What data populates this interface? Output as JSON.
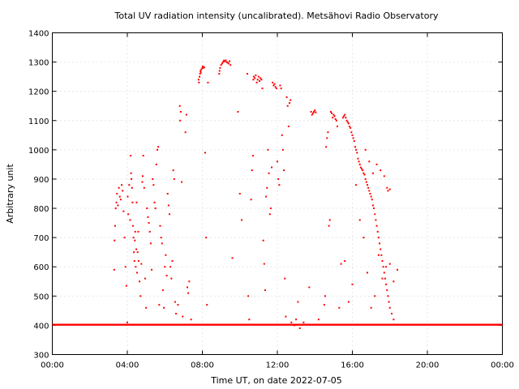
{
  "chart_data": {
    "type": "scatter",
    "title": "Total UV radiation intensity (uncalibrated). Metsähovi Radio Observatory",
    "xlabel": "Time UT, on date 2022-07-05",
    "ylabel": "Arbitrary unit",
    "xlim": [
      0,
      24
    ],
    "ylim": [
      300,
      1400
    ],
    "x_ticks": [
      0,
      4,
      8,
      12,
      16,
      20,
      24
    ],
    "x_tick_labels": [
      "00:00",
      "04:00",
      "08:00",
      "12:00",
      "16:00",
      "20:00",
      "00:00"
    ],
    "y_ticks": [
      300,
      400,
      500,
      600,
      700,
      800,
      900,
      1000,
      1100,
      1200,
      1300,
      1400
    ],
    "y_tick_labels": [
      "300",
      "400",
      "500",
      "600",
      "700",
      "800",
      "900",
      "1000",
      "1100",
      "1200",
      "1300",
      "1400"
    ],
    "grid": true,
    "marker_color": "#ff0000",
    "baseline": 402,
    "series": [
      {
        "points": [
          [
            3.3,
            590
          ],
          [
            3.32,
            690
          ],
          [
            3.35,
            740
          ],
          [
            3.38,
            800
          ],
          [
            3.42,
            820
          ],
          [
            3.45,
            850
          ],
          [
            3.5,
            810
          ],
          [
            3.55,
            870
          ],
          [
            3.6,
            840
          ],
          [
            3.65,
            830
          ],
          [
            3.7,
            880
          ],
          [
            3.75,
            860
          ],
          [
            3.8,
            790
          ],
          [
            3.85,
            700
          ],
          [
            3.9,
            600
          ],
          [
            3.95,
            535
          ],
          [
            4.0,
            410
          ],
          [
            4.02,
            840
          ],
          [
            4.05,
            780
          ],
          [
            4.1,
            880
          ],
          [
            4.15,
            760
          ],
          [
            4.18,
            980
          ],
          [
            4.2,
            920
          ],
          [
            4.22,
            900
          ],
          [
            4.25,
            870
          ],
          [
            4.28,
            820
          ],
          [
            4.3,
            740
          ],
          [
            4.33,
            700
          ],
          [
            4.35,
            650
          ],
          [
            4.38,
            620
          ],
          [
            4.4,
            690
          ],
          [
            4.42,
            720
          ],
          [
            4.45,
            600
          ],
          [
            4.48,
            660
          ],
          [
            4.5,
            820
          ],
          [
            4.52,
            580
          ],
          [
            4.55,
            650
          ],
          [
            4.58,
            720
          ],
          [
            4.6,
            620
          ],
          [
            4.65,
            550
          ],
          [
            4.7,
            500
          ],
          [
            4.75,
            610
          ],
          [
            4.8,
            890
          ],
          [
            4.82,
            910
          ],
          [
            4.85,
            980
          ],
          [
            4.9,
            870
          ],
          [
            4.95,
            560
          ],
          [
            5.0,
            460
          ],
          [
            5.05,
            800
          ],
          [
            5.1,
            770
          ],
          [
            5.15,
            750
          ],
          [
            5.2,
            720
          ],
          [
            5.25,
            680
          ],
          [
            5.3,
            590
          ],
          [
            5.35,
            900
          ],
          [
            5.4,
            880
          ],
          [
            5.45,
            820
          ],
          [
            5.5,
            800
          ],
          [
            5.55,
            950
          ],
          [
            5.6,
            1000
          ],
          [
            5.65,
            1010
          ],
          [
            5.7,
            470
          ],
          [
            5.75,
            740
          ],
          [
            5.8,
            700
          ],
          [
            5.85,
            680
          ],
          [
            5.9,
            520
          ],
          [
            5.95,
            460
          ],
          [
            6.0,
            600
          ],
          [
            6.05,
            640
          ],
          [
            6.1,
            570
          ],
          [
            6.15,
            850
          ],
          [
            6.2,
            810
          ],
          [
            6.25,
            780
          ],
          [
            6.3,
            600
          ],
          [
            6.35,
            560
          ],
          [
            6.4,
            620
          ],
          [
            6.45,
            930
          ],
          [
            6.5,
            900
          ],
          [
            6.55,
            480
          ],
          [
            6.6,
            440
          ],
          [
            6.7,
            470
          ],
          [
            6.8,
            1150
          ],
          [
            6.82,
            1100
          ],
          [
            6.85,
            1130
          ],
          [
            6.9,
            890
          ],
          [
            6.95,
            430
          ],
          [
            7.1,
            1060
          ],
          [
            7.15,
            1120
          ],
          [
            7.2,
            530
          ],
          [
            7.25,
            510
          ],
          [
            7.3,
            550
          ],
          [
            7.4,
            420
          ],
          [
            7.8,
            1240
          ],
          [
            7.82,
            1230
          ],
          [
            7.85,
            1250
          ],
          [
            7.88,
            1260
          ],
          [
            7.9,
            1270
          ],
          [
            7.92,
            1265
          ],
          [
            7.95,
            1275
          ],
          [
            8.0,
            1280
          ],
          [
            8.02,
            1285
          ],
          [
            8.05,
            1280
          ],
          [
            8.1,
            1282
          ],
          [
            8.15,
            990
          ],
          [
            8.2,
            700
          ],
          [
            8.25,
            470
          ],
          [
            8.3,
            1230
          ],
          [
            8.9,
            1260
          ],
          [
            8.92,
            1270
          ],
          [
            8.95,
            1280
          ],
          [
            9.0,
            1290
          ],
          [
            9.05,
            1295
          ],
          [
            9.1,
            1300
          ],
          [
            9.15,
            1305
          ],
          [
            9.2,
            1302
          ],
          [
            9.25,
            1306
          ],
          [
            9.3,
            1300
          ],
          [
            9.35,
            1298
          ],
          [
            9.4,
            1295
          ],
          [
            9.45,
            1303
          ],
          [
            9.5,
            1290
          ],
          [
            9.6,
            630
          ],
          [
            9.9,
            1130
          ],
          [
            10.0,
            850
          ],
          [
            10.1,
            760
          ],
          [
            10.4,
            1260
          ],
          [
            10.45,
            500
          ],
          [
            10.5,
            420
          ],
          [
            10.6,
            830
          ],
          [
            10.65,
            930
          ],
          [
            10.7,
            980
          ],
          [
            10.72,
            1240
          ],
          [
            10.75,
            1250
          ],
          [
            10.8,
            1245
          ],
          [
            10.85,
            1255
          ],
          [
            10.9,
            1230
          ],
          [
            10.95,
            1240
          ],
          [
            11.0,
            1250
          ],
          [
            11.05,
            1235
          ],
          [
            11.1,
            1245
          ],
          [
            11.15,
            1240
          ],
          [
            11.2,
            1210
          ],
          [
            11.25,
            690
          ],
          [
            11.3,
            610
          ],
          [
            11.35,
            520
          ],
          [
            11.4,
            840
          ],
          [
            11.45,
            870
          ],
          [
            11.5,
            1000
          ],
          [
            11.55,
            920
          ],
          [
            11.6,
            780
          ],
          [
            11.65,
            800
          ],
          [
            11.7,
            940
          ],
          [
            11.75,
            1230
          ],
          [
            11.8,
            1220
          ],
          [
            11.85,
            1225
          ],
          [
            11.9,
            1215
          ],
          [
            11.95,
            1210
          ],
          [
            12.0,
            960
          ],
          [
            12.05,
            900
          ],
          [
            12.1,
            880
          ],
          [
            12.15,
            1220
          ],
          [
            12.2,
            1210
          ],
          [
            12.25,
            1050
          ],
          [
            12.3,
            1000
          ],
          [
            12.35,
            930
          ],
          [
            12.4,
            560
          ],
          [
            12.45,
            430
          ],
          [
            12.5,
            1180
          ],
          [
            12.55,
            1150
          ],
          [
            12.6,
            1080
          ],
          [
            12.65,
            1160
          ],
          [
            12.7,
            1170
          ],
          [
            12.75,
            410
          ],
          [
            12.9,
            400
          ],
          [
            13.0,
            420
          ],
          [
            13.1,
            480
          ],
          [
            13.2,
            390
          ],
          [
            13.4,
            410
          ],
          [
            13.7,
            530
          ],
          [
            13.8,
            1130
          ],
          [
            13.85,
            1120
          ],
          [
            13.9,
            1125
          ],
          [
            13.95,
            1130
          ],
          [
            14.0,
            1135
          ],
          [
            14.05,
            1128
          ],
          [
            14.2,
            420
          ],
          [
            14.5,
            470
          ],
          [
            14.55,
            500
          ],
          [
            14.6,
            1010
          ],
          [
            14.65,
            1040
          ],
          [
            14.7,
            1060
          ],
          [
            14.75,
            740
          ],
          [
            14.8,
            760
          ],
          [
            14.85,
            1130
          ],
          [
            14.9,
            1125
          ],
          [
            14.95,
            1110
          ],
          [
            15.0,
            1120
          ],
          [
            15.05,
            1115
          ],
          [
            15.1,
            1105
          ],
          [
            15.15,
            1100
          ],
          [
            15.2,
            1080
          ],
          [
            15.3,
            460
          ],
          [
            15.5,
            1110
          ],
          [
            15.55,
            1115
          ],
          [
            15.6,
            1120
          ],
          [
            15.65,
            1110
          ],
          [
            15.7,
            1100
          ],
          [
            15.75,
            1095
          ],
          [
            15.8,
            1090
          ],
          [
            15.85,
            1080
          ],
          [
            15.9,
            1075
          ],
          [
            15.95,
            1060
          ],
          [
            16.0,
            1050
          ],
          [
            16.05,
            1040
          ],
          [
            16.1,
            1030
          ],
          [
            16.15,
            1010
          ],
          [
            16.2,
            1000
          ],
          [
            16.25,
            990
          ],
          [
            16.3,
            970
          ],
          [
            16.35,
            960
          ],
          [
            16.4,
            950
          ],
          [
            16.45,
            940
          ],
          [
            16.5,
            935
          ],
          [
            16.55,
            930
          ],
          [
            16.6,
            920
          ],
          [
            16.65,
            915
          ],
          [
            16.7,
            900
          ],
          [
            16.75,
            890
          ],
          [
            16.8,
            880
          ],
          [
            16.85,
            870
          ],
          [
            16.9,
            860
          ],
          [
            16.95,
            850
          ],
          [
            17.0,
            840
          ],
          [
            17.05,
            830
          ],
          [
            17.1,
            810
          ],
          [
            17.15,
            800
          ],
          [
            17.2,
            780
          ],
          [
            17.25,
            760
          ],
          [
            17.3,
            740
          ],
          [
            17.35,
            720
          ],
          [
            17.4,
            700
          ],
          [
            17.45,
            680
          ],
          [
            17.5,
            660
          ],
          [
            17.55,
            640
          ],
          [
            17.6,
            620
          ],
          [
            17.65,
            600
          ],
          [
            17.7,
            580
          ],
          [
            17.75,
            560
          ],
          [
            17.8,
            540
          ],
          [
            17.85,
            520
          ],
          [
            17.9,
            500
          ],
          [
            17.95,
            480
          ],
          [
            18.0,
            460
          ],
          [
            18.1,
            440
          ],
          [
            18.2,
            420
          ],
          [
            15.4,
            610
          ],
          [
            15.6,
            620
          ],
          [
            15.8,
            480
          ],
          [
            16.0,
            540
          ],
          [
            16.2,
            880
          ],
          [
            16.4,
            760
          ],
          [
            16.6,
            700
          ],
          [
            16.8,
            580
          ],
          [
            17.0,
            460
          ],
          [
            17.2,
            500
          ],
          [
            17.4,
            640
          ],
          [
            17.6,
            560
          ],
          [
            17.8,
            600
          ],
          [
            18.0,
            610
          ],
          [
            18.2,
            550
          ],
          [
            18.4,
            590
          ],
          [
            16.7,
            1000
          ],
          [
            16.9,
            960
          ],
          [
            17.1,
            920
          ],
          [
            17.3,
            950
          ],
          [
            17.5,
            930
          ],
          [
            17.7,
            910
          ],
          [
            17.85,
            870
          ],
          [
            17.9,
            860
          ],
          [
            18.0,
            865
          ]
        ]
      }
    ]
  }
}
